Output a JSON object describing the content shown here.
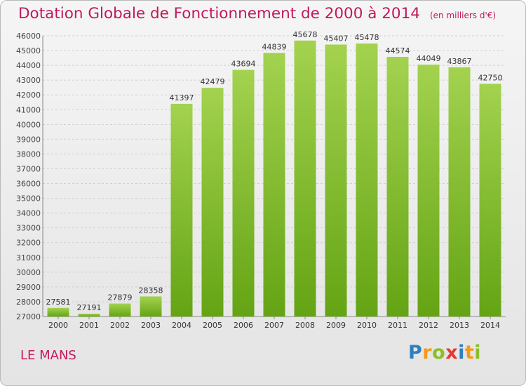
{
  "chart_data": {
    "type": "bar",
    "title": "Dotation Globale de Fonctionnement de 2000 à 2014",
    "subtitle": "(en milliers d'€)",
    "categories": [
      "2000",
      "2001",
      "2002",
      "2003",
      "2004",
      "2005",
      "2006",
      "2007",
      "2008",
      "2009",
      "2010",
      "2011",
      "2012",
      "2013",
      "2014"
    ],
    "values": [
      27581,
      27191,
      27879,
      28358,
      41397,
      42479,
      43694,
      44839,
      45678,
      45407,
      45478,
      44574,
      44049,
      43867,
      42750
    ],
    "ylim": [
      27000,
      46000
    ],
    "yticks": [
      27000,
      28000,
      29000,
      30000,
      31000,
      32000,
      33000,
      34000,
      35000,
      36000,
      37000,
      38000,
      39000,
      40000,
      41000,
      42000,
      43000,
      44000,
      45000,
      46000
    ],
    "grid": true,
    "bar_color_top": "#a3d24f",
    "bar_color_bottom": "#64a414"
  },
  "location": "LE MANS",
  "logo": {
    "letters": [
      "P",
      "r",
      "o",
      "x",
      "i",
      "t",
      "i"
    ],
    "colors": [
      "#2d7fc1",
      "#f59a1b",
      "#8cbf26",
      "#e53935",
      "#2d7fc1",
      "#f59a1b",
      "#8cbf26"
    ]
  }
}
